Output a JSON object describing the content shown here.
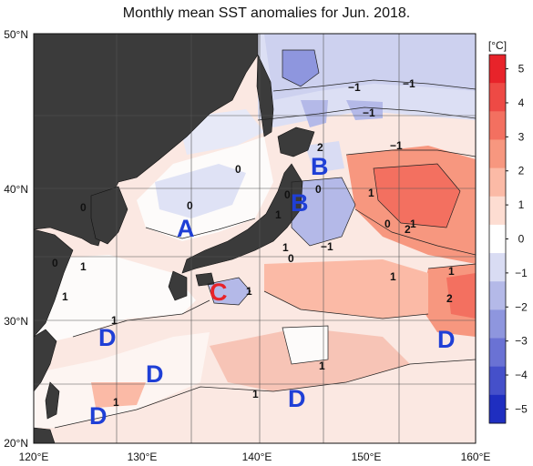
{
  "title": "Monthly mean SST anomalies for Jun. 2018.",
  "lat_labels": [
    "50°N",
    "40°N",
    "30°N",
    "20°N"
  ],
  "lon_labels": [
    "120°E",
    "130°E",
    "140°E",
    "150°E",
    "160°E"
  ],
  "colorbar": {
    "unit": "[°C]",
    "ticks": [
      "5",
      "4",
      "3",
      "2",
      "1",
      "0",
      "−1",
      "−2",
      "−3",
      "−4",
      "−5"
    ],
    "colors": [
      "#e8232a",
      "#ee4a45",
      "#f37060",
      "#f7977f",
      "#fbbaa6",
      "#fdddd2",
      "#ffffff",
      "#d9dcf3",
      "#b4b9e8",
      "#8e96de",
      "#6a72d4",
      "#4550ca",
      "#1f2ec0"
    ]
  },
  "regions": [
    {
      "letter": "A",
      "color": "#1f3fd6"
    },
    {
      "letter": "B",
      "color": "#1f3fd6"
    },
    {
      "letter": "B",
      "color": "#1f3fd6"
    },
    {
      "letter": "C",
      "color": "#e8232a"
    },
    {
      "letter": "D",
      "color": "#1f3fd6"
    },
    {
      "letter": "D",
      "color": "#1f3fd6"
    },
    {
      "letter": "D",
      "color": "#1f3fd6"
    },
    {
      "letter": "D",
      "color": "#1f3fd6"
    },
    {
      "letter": "D",
      "color": "#1f3fd6"
    }
  ],
  "contour_labels": [
    "−1",
    "−1",
    "−1",
    "−1",
    "−1",
    "2",
    "0",
    "0",
    "0",
    "0",
    "0",
    "1",
    "1",
    "2",
    "0",
    "1",
    "0",
    "0",
    "1",
    "1",
    "1",
    "1",
    "1",
    "2",
    "1",
    "1",
    "1",
    "1",
    "1"
  ]
}
